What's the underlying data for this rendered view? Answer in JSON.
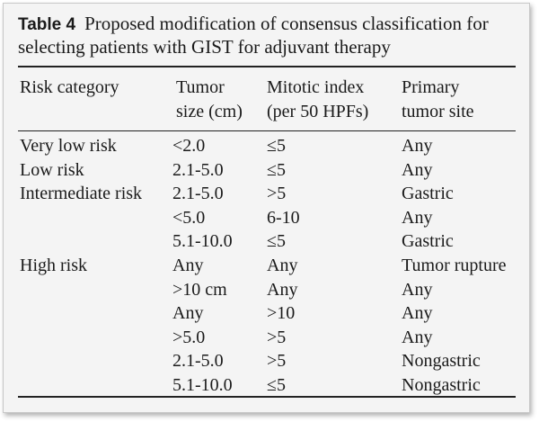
{
  "caption": {
    "tag": "Table 4",
    "text": "Proposed modification of consensus classification for selecting patients with GIST for adjuvant therapy"
  },
  "headers": {
    "risk_category": "Risk category",
    "tumor_size_1": "Tumor",
    "tumor_size_2": "size (cm)",
    "mitotic_index_1": "Mitotic index",
    "mitotic_index_2": "(per 50 HPFs)",
    "primary_site_1": "Primary",
    "primary_site_2": "tumor site"
  },
  "rows": [
    {
      "risk": "Very low risk",
      "size": "<2.0",
      "mitotic": "≤5",
      "site": "Any"
    },
    {
      "risk": "Low risk",
      "size": "2.1-5.0",
      "mitotic": "≤5",
      "site": "Any"
    },
    {
      "risk": "Intermediate risk",
      "size": "2.1-5.0",
      "mitotic": ">5",
      "site": "Gastric"
    },
    {
      "risk": "",
      "size": "<5.0",
      "mitotic": "6-10",
      "site": "Any"
    },
    {
      "risk": "",
      "size": "5.1-10.0",
      "mitotic": "≤5",
      "site": "Gastric"
    },
    {
      "risk": "High risk",
      "size": "Any",
      "mitotic": "Any",
      "site": "Tumor rupture"
    },
    {
      "risk": "",
      "size": ">10 cm",
      "mitotic": "Any",
      "site": "Any"
    },
    {
      "risk": "",
      "size": "Any",
      "mitotic": ">10",
      "site": "Any"
    },
    {
      "risk": "",
      "size": ">5.0",
      "mitotic": ">5",
      "site": "Any"
    },
    {
      "risk": "",
      "size": "2.1-5.0",
      "mitotic": ">5",
      "site": "Nongastric"
    },
    {
      "risk": "",
      "size": "5.1-10.0",
      "mitotic": "≤5",
      "site": "Nongastric"
    }
  ]
}
